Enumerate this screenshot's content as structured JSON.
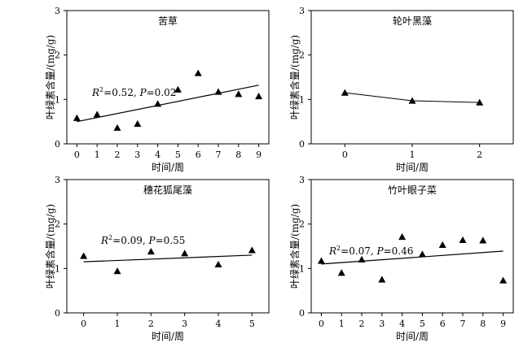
{
  "chart_data": [
    {
      "type": "scatter",
      "title": "苦草",
      "xlabel": "时间/周",
      "ylabel": "叶绿素含量/(mg/g)",
      "xlim": [
        -0.5,
        9.5
      ],
      "ylim": [
        0,
        3
      ],
      "xticks": [
        0,
        1,
        2,
        3,
        4,
        5,
        6,
        7,
        8,
        9
      ],
      "yticks": [
        0,
        1,
        2,
        3
      ],
      "x": [
        0,
        1,
        2,
        3,
        4,
        5,
        6,
        7,
        8,
        9
      ],
      "y": [
        0.58,
        0.66,
        0.36,
        0.45,
        0.9,
        1.22,
        1.59,
        1.17,
        1.12,
        1.07
      ],
      "fit_line": [
        [
          0,
          0.5
        ],
        [
          9,
          1.32
        ]
      ],
      "annotation": {
        "r2_label": "R",
        "sup": "2",
        "r2_value": "=0.52, ",
        "p_label": "P",
        "p_value": "=0.02"
      }
    },
    {
      "type": "line",
      "title": "轮叶黑藻",
      "xlabel": "时间/周",
      "ylabel": "叶绿素含量/(mg/g)",
      "xlim": [
        -0.5,
        2.5
      ],
      "ylim": [
        0,
        3
      ],
      "xticks": [
        0,
        1,
        2
      ],
      "yticks": [
        0,
        1,
        2,
        3
      ],
      "x": [
        0,
        1,
        2
      ],
      "y": [
        1.15,
        0.97,
        0.93
      ]
    },
    {
      "type": "scatter",
      "title": "穗花狐尾藻",
      "xlabel": "时间/周",
      "ylabel": "叶绿素含量/(mg/g)",
      "xlim": [
        -0.5,
        5.5
      ],
      "ylim": [
        0,
        3
      ],
      "xticks": [
        0,
        1,
        2,
        3,
        4,
        5
      ],
      "yticks": [
        0,
        1,
        2,
        3
      ],
      "x": [
        0,
        1,
        2,
        3,
        4,
        5
      ],
      "y": [
        1.28,
        0.94,
        1.38,
        1.34,
        1.09,
        1.41
      ],
      "fit_line": [
        [
          0,
          1.15
        ],
        [
          5,
          1.3
        ]
      ],
      "annotation": {
        "r2_label": "R",
        "sup": "2",
        "r2_value": "=0.09, ",
        "p_label": "P",
        "p_value": "=0.55"
      }
    },
    {
      "type": "scatter",
      "title": "竹叶眼子菜",
      "xlabel": "时间/周",
      "ylabel": "叶绿素含量/(mg/g)",
      "xlim": [
        -0.5,
        9.5
      ],
      "ylim": [
        0,
        3
      ],
      "xticks": [
        0,
        1,
        2,
        3,
        4,
        5,
        6,
        7,
        8,
        9
      ],
      "yticks": [
        0,
        1,
        2,
        3
      ],
      "x": [
        0,
        1,
        2,
        3,
        4,
        5,
        6,
        7,
        8,
        9
      ],
      "y": [
        1.17,
        0.9,
        1.2,
        0.75,
        1.71,
        1.32,
        1.53,
        1.64,
        1.63,
        0.73
      ],
      "fit_line": [
        [
          0,
          1.1
        ],
        [
          9,
          1.39
        ]
      ],
      "annotation": {
        "r2_label": "R",
        "sup": "2",
        "r2_value": "=0.07, ",
        "p_label": "P",
        "p_value": "=0.46"
      }
    }
  ]
}
